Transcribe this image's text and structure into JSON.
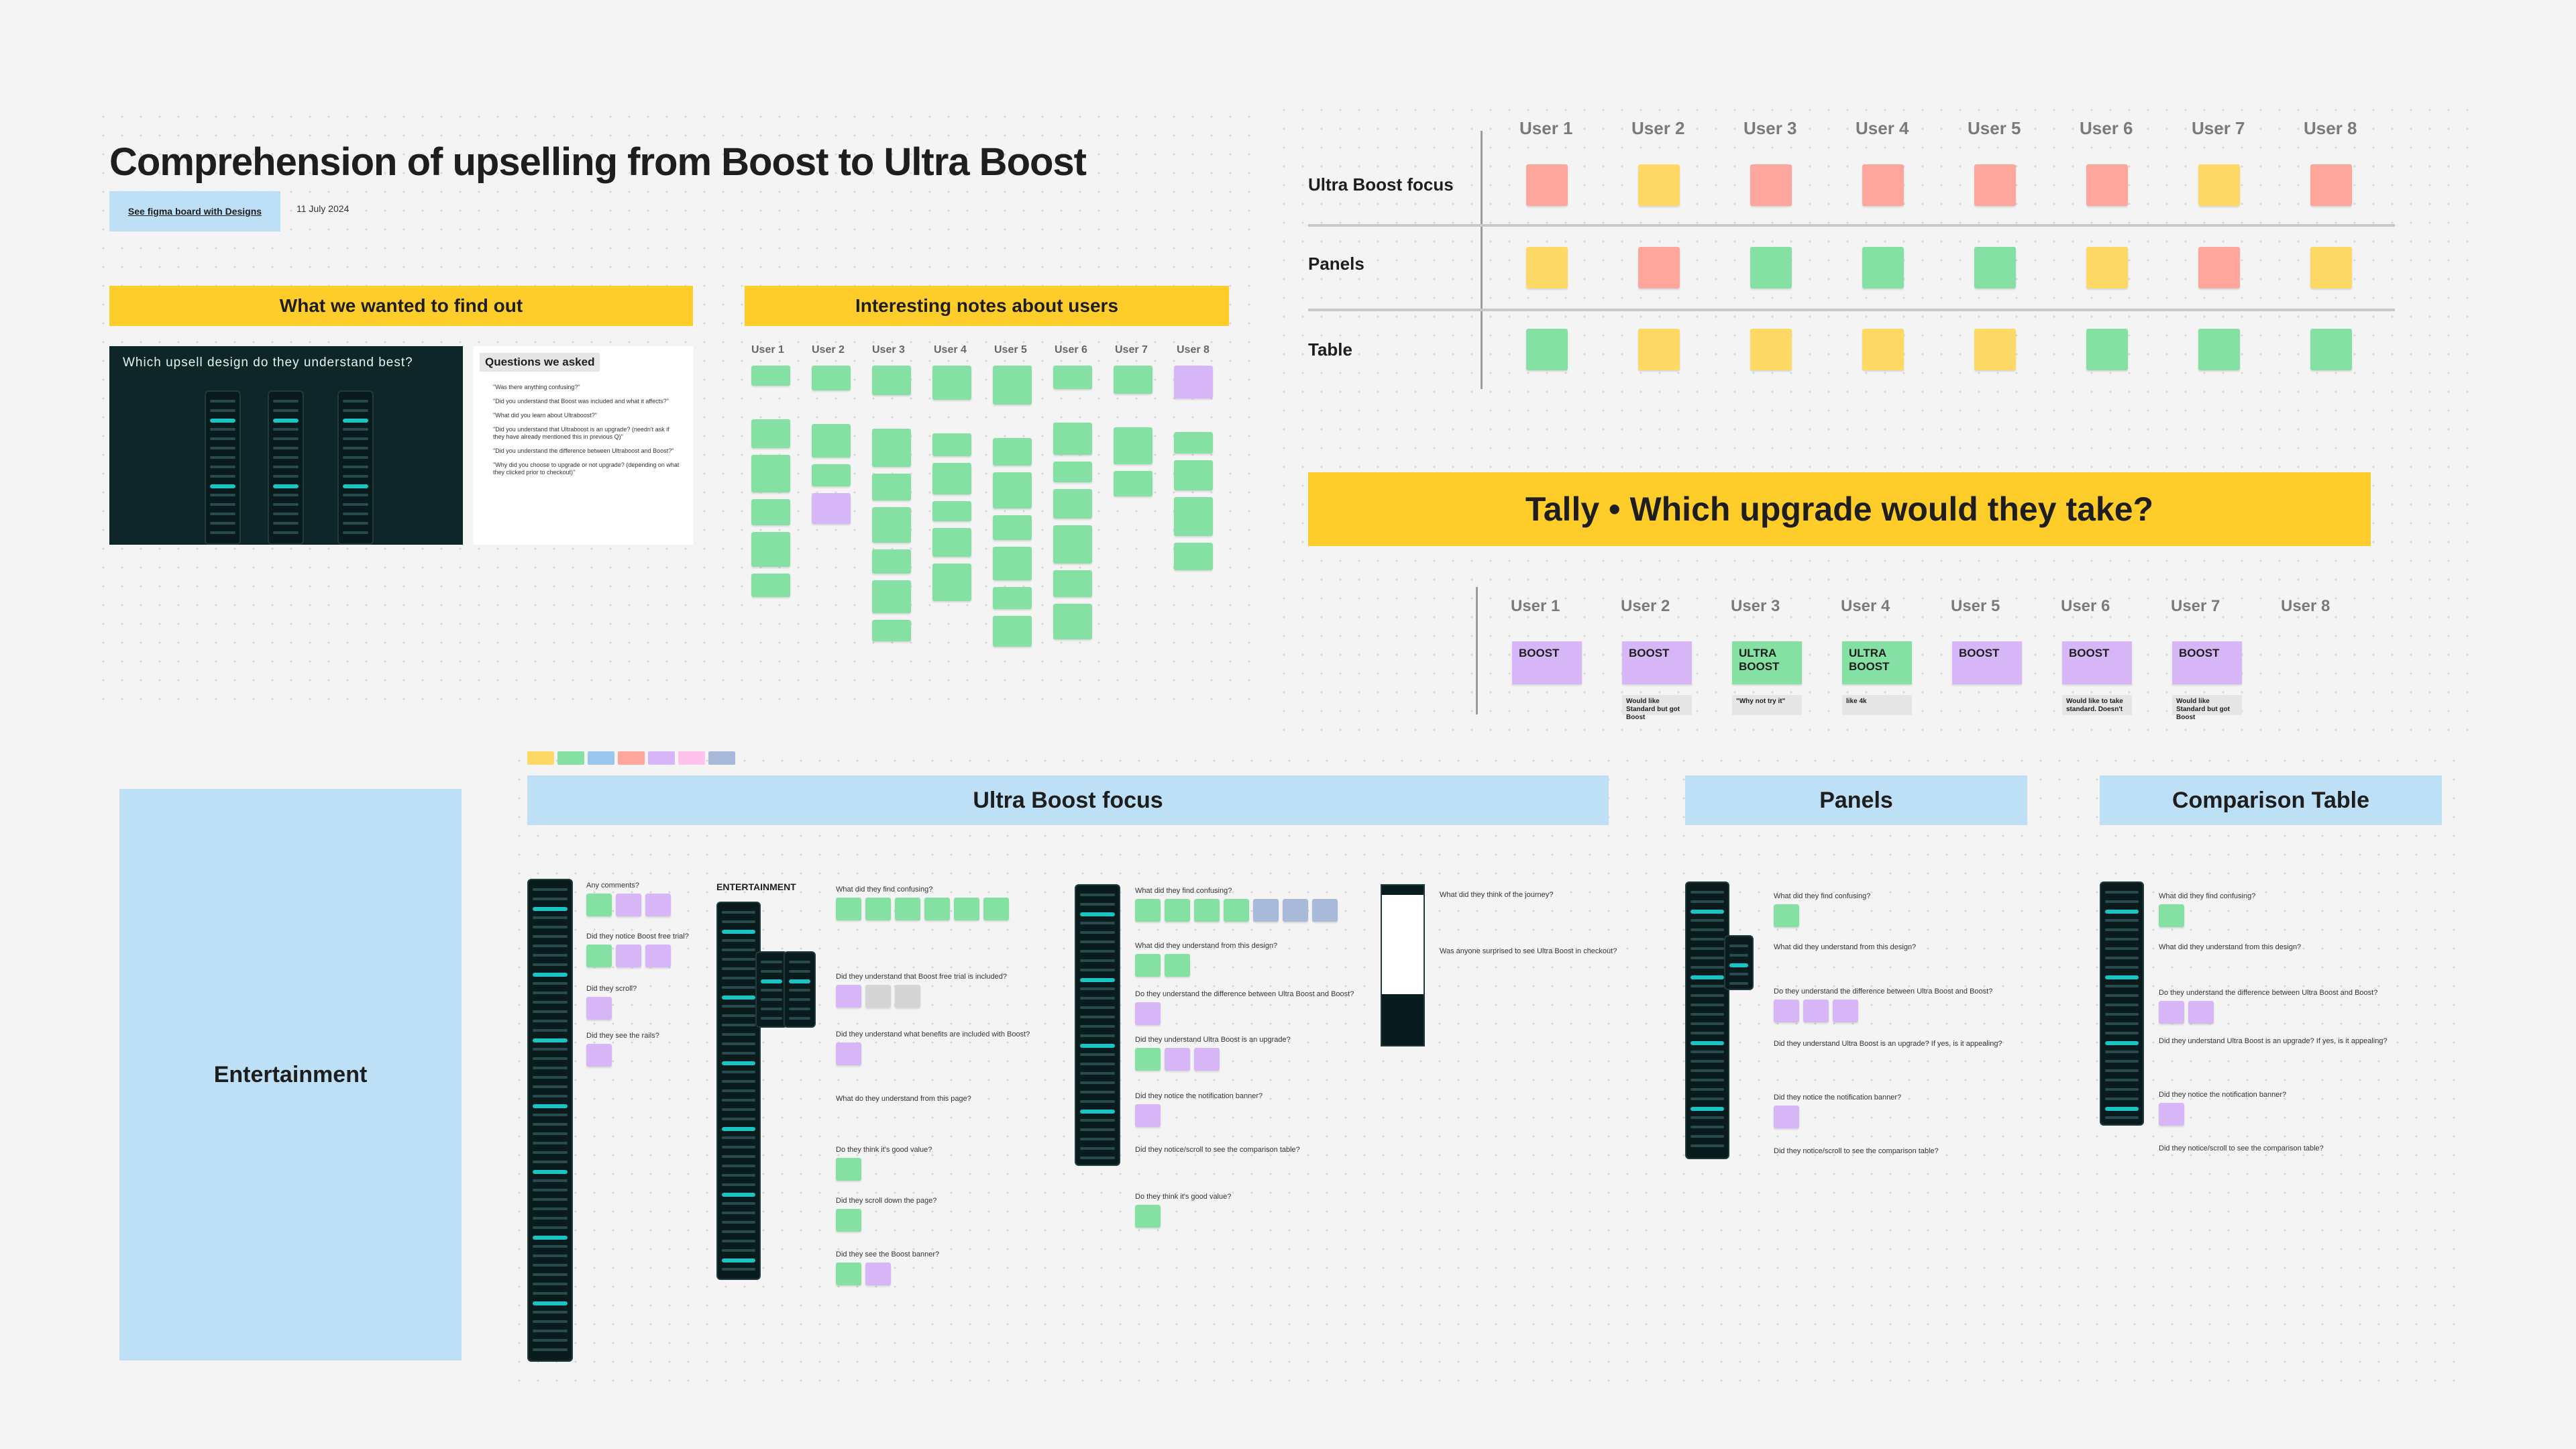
{
  "board": {
    "title": "Comprehension of upselling from Boost to Ultra Boost",
    "figma_link_label": "See figma board with Designs",
    "date": "11 July 2024"
  },
  "find_out": {
    "header": "What we wanted to find out",
    "panel_heading": "Which upsell design do they understand best?",
    "questions_title": "Questions we asked",
    "questions": [
      "\"Was there anything confusing?\"",
      "\"Did you understand that Boost was included and what it affects?\"",
      "\"What did you learn about Ultraboost?\"",
      "\"Did you understand that Ultraboost is an upgrade? (needn't ask if they have already mentioned this in previous Q)\"",
      "\"Did you understand the difference between Ultraboost and Boost?\"",
      "\"Why did you choose to upgrade or not upgrade? (depending on what they clicked prior to checkout)\""
    ]
  },
  "notes": {
    "header": "Interesting notes about users",
    "users": [
      "User 1",
      "User 2",
      "User 3",
      "User 4",
      "User 5",
      "User 6",
      "User 7",
      "User 8"
    ]
  },
  "matrix": {
    "users": [
      "User 1",
      "User 2",
      "User 3",
      "User 4",
      "User 5",
      "User 6",
      "User 7",
      "User 8"
    ],
    "rows": [
      "Ultra Boost focus",
      "Panels",
      "Table"
    ],
    "colors": [
      [
        "r",
        "y",
        "r",
        "r",
        "r",
        "r",
        "y",
        "r"
      ],
      [
        "y",
        "r",
        "g",
        "g",
        "g",
        "y",
        "r",
        "y"
      ],
      [
        "g",
        "y",
        "y",
        "y",
        "y",
        "g",
        "g",
        "g"
      ]
    ]
  },
  "tally": {
    "header": "Tally • Which upgrade would they take?",
    "users": [
      "User 1",
      "User 2",
      "User 3",
      "User 4",
      "User 5",
      "User 6",
      "User 7",
      "User 8"
    ],
    "choices": [
      "BOOST",
      "BOOST",
      "ULTRA BOOST",
      "ULTRA BOOST",
      "BOOST",
      "BOOST",
      "BOOST",
      ""
    ],
    "comments": [
      "",
      "Would like Standard but got Boost",
      "\"Why not try it\"",
      "like 4k",
      "",
      "Would like to take standard. Doesn't",
      "Would like Standard but got Boost",
      ""
    ]
  },
  "sections": {
    "entertainment": "Entertainment",
    "ultra_boost_focus": "Ultra Boost focus",
    "panels": "Panels",
    "comparison_table": "Comparison Table",
    "entertainment_label": "ENTERTAINMENT"
  },
  "ent_questions": [
    "Any comments?",
    "Did they notice Boost free trial?",
    "Did they scroll?",
    "Did they see the rails?"
  ],
  "ubf_questions": [
    "What did they find confusing?",
    "Did they understand that Boost free trial is included?",
    "Did they understand what benefits are included with Boost?",
    "What do they understand from this page?",
    "Do they think it's good value?",
    "Did they scroll down the page?",
    "Did they see the Boost banner?"
  ],
  "ubf2_questions": [
    "What did they find confusing?",
    "What did they understand from this design?",
    "Do they understand the difference between Ultra Boost and Boost?",
    "Did they understand Ultra Boost is an upgrade?",
    "Did they notice the notification banner?",
    "Did they notice/scroll to see the comparison table?",
    "Do they think it's good value?"
  ],
  "journey_questions": [
    "What did they think of the journey?",
    "Was anyone surprised to see Ultra Boost in checkout?"
  ],
  "panel_questions": [
    "What did they find confusing?",
    "What did they understand from this design?",
    "Do they understand the difference between Ultra Boost and Boost?",
    "Did they understand Ultra Boost is an upgrade? If yes, is it appealing?",
    "Did they notice the notification banner?",
    "Did they notice/scroll to see the comparison table?"
  ],
  "table_questions": [
    "What did they find confusing?",
    "What did they understand from this design?",
    "Do they understand the difference between Ultra Boost and Boost?",
    "Did they understand Ultra Boost is an upgrade? If yes, is it appealing?",
    "Did they notice the notification banner?",
    "Did they notice/scroll to see the comparison table?"
  ],
  "colors": {
    "yellow": "#ffcd29",
    "light_blue": "#bde0f6",
    "dark_green": "#0f2628",
    "sticky_green": "#85e0a3",
    "sticky_yellow": "#ffd966",
    "sticky_red": "#ffa69c",
    "sticky_purple": "#d6b6f6"
  },
  "swatches": [
    "#ffd966",
    "#85e0a3",
    "#9ac7ee",
    "#ffa69c",
    "#d6b6f6",
    "#ffc2ec",
    "#a9b9d9"
  ]
}
